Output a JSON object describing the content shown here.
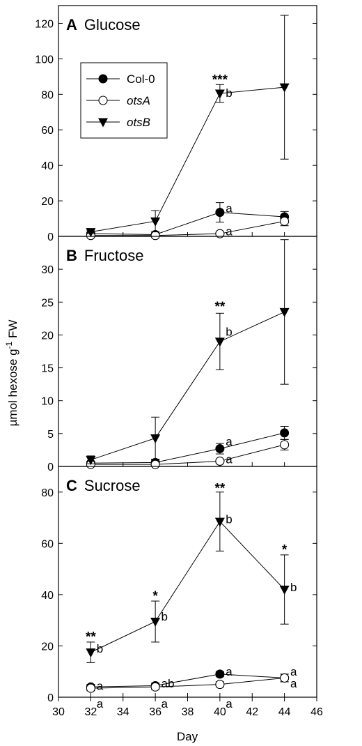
{
  "chart_data": {
    "type": "line",
    "x_axis": {
      "label": "Day",
      "xlim": [
        30,
        46
      ],
      "ticks": [
        30,
        32,
        34,
        36,
        38,
        40,
        42,
        44,
        46
      ]
    },
    "y_axis_label": "µmol hexose g-1 FW",
    "legend": {
      "placement": "top-left",
      "entries": [
        {
          "name": "Col-0",
          "marker": "filled-circle"
        },
        {
          "name": "otsA",
          "marker": "open-circle",
          "italic": true
        },
        {
          "name": "otsB",
          "marker": "filled-triangle-down",
          "italic": true
        }
      ]
    },
    "panels": [
      {
        "id": "A",
        "letter": "A",
        "title": "Glucose",
        "ylim": [
          0,
          130
        ],
        "yticks": [
          0,
          20,
          40,
          60,
          80,
          100,
          120
        ],
        "series": [
          {
            "name": "Col-0",
            "x": [
              32,
              36,
              40,
              44
            ],
            "y": [
              1.5,
              1.0,
              13.5,
              11.0
            ],
            "err": [
              0.8,
              0.6,
              5.5,
              3.0
            ]
          },
          {
            "name": "otsA",
            "x": [
              32,
              36,
              40,
              44
            ],
            "y": [
              0.5,
              0.5,
              1.5,
              8.5
            ],
            "err": [
              0.4,
              0.4,
              0.8,
              2.5
            ]
          },
          {
            "name": "otsB",
            "x": [
              32,
              36,
              40,
              44
            ],
            "y": [
              2.5,
              8.5,
              80.5,
              84.0
            ],
            "err": [
              1.0,
              6.0,
              5.0,
              40.5
            ]
          }
        ],
        "annotations": [
          {
            "x": 40,
            "y": 89,
            "text": "***",
            "kind": "star"
          },
          {
            "x": 40.45,
            "y": 81,
            "text": "b",
            "kind": "letter"
          },
          {
            "x": 40.45,
            "y": 16,
            "text": "a",
            "kind": "letter"
          },
          {
            "x": 40.45,
            "y": 3,
            "text": "a",
            "kind": "letter"
          }
        ]
      },
      {
        "id": "B",
        "letter": "B",
        "title": "Fructose",
        "ylim": [
          0,
          35
        ],
        "yticks": [
          0,
          5,
          10,
          15,
          20,
          25,
          30
        ],
        "series": [
          {
            "name": "Col-0",
            "x": [
              32,
              36,
              40,
              44
            ],
            "y": [
              0.5,
              0.6,
              2.7,
              5.1
            ],
            "err": [
              0.3,
              0.4,
              0.8,
              1.0
            ]
          },
          {
            "name": "otsA",
            "x": [
              32,
              36,
              40,
              44
            ],
            "y": [
              0.3,
              0.3,
              0.8,
              3.3
            ],
            "err": [
              0.2,
              0.2,
              0.3,
              0.8
            ]
          },
          {
            "name": "otsB",
            "x": [
              32,
              36,
              40,
              44
            ],
            "y": [
              1.0,
              4.3,
              19.0,
              23.5
            ],
            "err": [
              0.6,
              3.2,
              4.3,
              11.0
            ]
          }
        ],
        "annotations": [
          {
            "x": 40,
            "y": 24.5,
            "text": "**",
            "kind": "star"
          },
          {
            "x": 40.45,
            "y": 20.5,
            "text": "b",
            "kind": "letter"
          },
          {
            "x": 40.45,
            "y": 3.8,
            "text": "a",
            "kind": "letter"
          },
          {
            "x": 40.45,
            "y": 1.1,
            "text": "a",
            "kind": "letter"
          }
        ]
      },
      {
        "id": "C",
        "letter": "C",
        "title": "Sucrose",
        "ylim": [
          0,
          90
        ],
        "yticks": [
          0,
          20,
          40,
          60,
          80
        ],
        "series": [
          {
            "name": "Col-0",
            "x": [
              32,
              36,
              40,
              44
            ],
            "y": [
              4.0,
              4.5,
              9.0,
              7.5
            ],
            "err": [
              1.0,
              1.0,
              1.0,
              1.5
            ]
          },
          {
            "name": "otsA",
            "x": [
              32,
              36,
              40,
              44
            ],
            "y": [
              3.5,
              4.0,
              5.0,
              7.5
            ],
            "err": [
              1.0,
              1.0,
              1.0,
              1.5
            ]
          },
          {
            "name": "otsB",
            "x": [
              32,
              36,
              40,
              44
            ],
            "y": [
              17.5,
              29.5,
              68.5,
              42.0
            ],
            "err": [
              4.0,
              8.0,
              11.5,
              13.5
            ]
          }
        ],
        "annotations": [
          {
            "x": 32,
            "y": 24,
            "text": "**",
            "kind": "star"
          },
          {
            "x": 32.45,
            "y": 19,
            "text": "b",
            "kind": "letter"
          },
          {
            "x": 36,
            "y": 40,
            "text": "*",
            "kind": "star"
          },
          {
            "x": 36.45,
            "y": 31.5,
            "text": "b",
            "kind": "letter"
          },
          {
            "x": 40,
            "y": 82,
            "text": "**",
            "kind": "star"
          },
          {
            "x": 40.45,
            "y": 69.5,
            "text": "b",
            "kind": "letter"
          },
          {
            "x": 44,
            "y": 58,
            "text": "*",
            "kind": "star"
          },
          {
            "x": 44.45,
            "y": 43,
            "text": "b",
            "kind": "letter"
          },
          {
            "x": 32.45,
            "y": 4.5,
            "text": "a",
            "kind": "letter"
          },
          {
            "x": 32.45,
            "y": -2.5,
            "text": "a",
            "kind": "letter"
          },
          {
            "x": 36.45,
            "y": 5.5,
            "text": "ab",
            "kind": "letter"
          },
          {
            "x": 36.45,
            "y": -2.5,
            "text": "a",
            "kind": "letter"
          },
          {
            "x": 40.45,
            "y": 10,
            "text": "a",
            "kind": "letter"
          },
          {
            "x": 40.45,
            "y": -2.5,
            "text": "a",
            "kind": "letter"
          },
          {
            "x": 44.45,
            "y": 10,
            "text": "a",
            "kind": "letter"
          },
          {
            "x": 44.45,
            "y": 5.5,
            "text": "a",
            "kind": "letter"
          }
        ]
      }
    ]
  }
}
